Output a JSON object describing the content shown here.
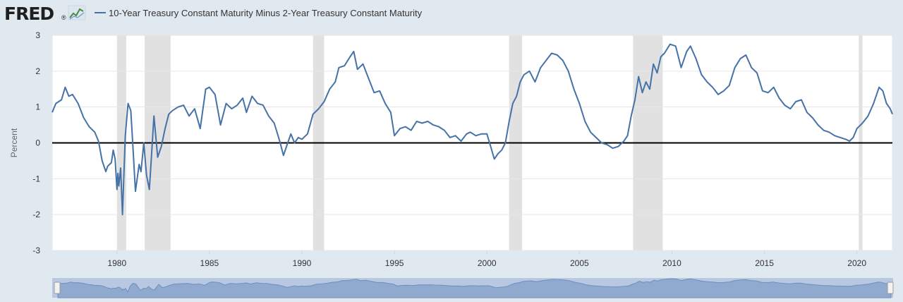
{
  "brand": {
    "logo_text": "FRED",
    "logo_registered": "®"
  },
  "legend": {
    "items": [
      {
        "label": "10-Year Treasury Constant Maturity Minus 2-Year Treasury Constant Maturity",
        "color": "#4572a7"
      }
    ]
  },
  "colors": {
    "background": "#e1e9f0",
    "plot_background": "#ffffff",
    "series_line": "#4572a7",
    "recession_band": "#e1e1e1",
    "zero_line": "#000000",
    "navigator_fill": "#8fa9cf",
    "navigator_track": "#b8c8e0"
  },
  "chart_data": {
    "type": "line",
    "title": "",
    "xlabel": "",
    "ylabel": "Percent",
    "xlim": [
      1976.5,
      2021.92
    ],
    "ylim": [
      -3,
      3
    ],
    "x_ticks": [
      1980,
      1985,
      1990,
      1995,
      2000,
      2005,
      2010,
      2015,
      2020
    ],
    "x_tick_labels": [
      "1980",
      "1985",
      "1990",
      "1995",
      "2000",
      "2005",
      "2010",
      "2015",
      "2020"
    ],
    "y_ticks": [
      -3,
      -2,
      -1,
      0,
      1,
      2,
      3
    ],
    "y_tick_labels": [
      "-3",
      "-2",
      "-1",
      "0",
      "1",
      "2",
      "3"
    ],
    "grid": true,
    "legend_position": "top-left",
    "reference_lines": [
      {
        "axis": "y",
        "value": 0
      }
    ],
    "recessions": [
      [
        1980.0,
        1980.5
      ],
      [
        1981.5,
        1982.9
      ],
      [
        1990.6,
        1991.2
      ],
      [
        2001.2,
        2001.9
      ],
      [
        2007.9,
        2009.5
      ],
      [
        2020.1,
        2020.3
      ]
    ],
    "series": [
      {
        "name": "10-Year Treasury Constant Maturity Minus 2-Year Treasury Constant Maturity",
        "x": [
          1976.5,
          1976.7,
          1977.0,
          1977.2,
          1977.4,
          1977.6,
          1977.9,
          1978.2,
          1978.5,
          1978.8,
          1979.0,
          1979.2,
          1979.4,
          1979.5,
          1979.7,
          1979.8,
          1979.9,
          1980.0,
          1980.05,
          1980.1,
          1980.2,
          1980.3,
          1980.45,
          1980.6,
          1980.75,
          1980.85,
          1981.0,
          1981.2,
          1981.3,
          1981.45,
          1981.6,
          1981.75,
          1981.85,
          1982.0,
          1982.2,
          1982.4,
          1982.6,
          1982.8,
          1983.0,
          1983.3,
          1983.6,
          1983.9,
          1984.2,
          1984.5,
          1984.8,
          1985.0,
          1985.3,
          1985.6,
          1985.9,
          1986.2,
          1986.5,
          1986.8,
          1987.0,
          1987.3,
          1987.6,
          1987.9,
          1988.2,
          1988.5,
          1988.8,
          1989.0,
          1989.2,
          1989.4,
          1989.6,
          1989.8,
          1990.0,
          1990.3,
          1990.6,
          1990.9,
          1991.2,
          1991.5,
          1991.8,
          1992.0,
          1992.3,
          1992.6,
          1992.8,
          1993.0,
          1993.3,
          1993.6,
          1993.9,
          1994.2,
          1994.5,
          1994.8,
          1995.0,
          1995.3,
          1995.6,
          1995.9,
          1996.2,
          1996.5,
          1996.8,
          1997.1,
          1997.4,
          1997.7,
          1998.0,
          1998.3,
          1998.6,
          1998.9,
          1999.1,
          1999.4,
          1999.7,
          2000.0,
          2000.2,
          2000.4,
          2000.6,
          2000.8,
          2001.0,
          2001.2,
          2001.4,
          2001.6,
          2001.8,
          2002.0,
          2002.3,
          2002.6,
          2002.9,
          2003.2,
          2003.5,
          2003.8,
          2004.1,
          2004.4,
          2004.7,
          2005.0,
          2005.3,
          2005.6,
          2005.9,
          2006.2,
          2006.5,
          2006.8,
          2007.1,
          2007.4,
          2007.6,
          2007.8,
          2008.0,
          2008.2,
          2008.4,
          2008.6,
          2008.8,
          2009.0,
          2009.2,
          2009.4,
          2009.6,
          2009.9,
          2010.2,
          2010.5,
          2010.8,
          2011.0,
          2011.3,
          2011.6,
          2011.9,
          2012.2,
          2012.5,
          2012.8,
          2013.1,
          2013.4,
          2013.7,
          2014.0,
          2014.3,
          2014.6,
          2014.9,
          2015.2,
          2015.5,
          2015.8,
          2016.1,
          2016.4,
          2016.7,
          2017.0,
          2017.3,
          2017.6,
          2017.9,
          2018.2,
          2018.5,
          2018.8,
          2019.1,
          2019.4,
          2019.6,
          2019.8,
          2020.0,
          2020.3,
          2020.6,
          2020.9,
          2021.2,
          2021.4,
          2021.6,
          2021.8,
          2021.92
        ],
        "values": [
          0.85,
          1.1,
          1.2,
          1.55,
          1.3,
          1.35,
          1.1,
          0.7,
          0.45,
          0.3,
          0.05,
          -0.5,
          -0.8,
          -0.65,
          -0.55,
          -0.2,
          -0.45,
          -1.3,
          -0.85,
          -1.2,
          -0.7,
          -2.0,
          0.2,
          1.1,
          0.9,
          0.0,
          -1.35,
          -0.6,
          -0.8,
          0.0,
          -0.9,
          -1.3,
          -0.5,
          0.75,
          -0.4,
          -0.1,
          0.4,
          0.8,
          0.9,
          1.0,
          1.05,
          0.75,
          0.95,
          0.4,
          1.5,
          1.55,
          1.35,
          0.5,
          1.1,
          0.95,
          1.05,
          1.25,
          0.85,
          1.3,
          1.1,
          1.05,
          0.75,
          0.55,
          0.05,
          -0.35,
          -0.05,
          0.25,
          0.0,
          0.15,
          0.1,
          0.25,
          0.8,
          0.95,
          1.15,
          1.5,
          1.7,
          2.1,
          2.15,
          2.4,
          2.55,
          2.05,
          2.2,
          1.8,
          1.4,
          1.45,
          1.1,
          0.85,
          0.2,
          0.4,
          0.45,
          0.35,
          0.6,
          0.55,
          0.6,
          0.5,
          0.45,
          0.35,
          0.15,
          0.2,
          0.05,
          0.25,
          0.3,
          0.2,
          0.25,
          0.25,
          -0.1,
          -0.45,
          -0.3,
          -0.2,
          0.0,
          0.6,
          1.1,
          1.3,
          1.7,
          1.9,
          2.0,
          1.7,
          2.1,
          2.3,
          2.5,
          2.45,
          2.3,
          2.0,
          1.5,
          1.1,
          0.6,
          0.3,
          0.15,
          0.0,
          -0.05,
          -0.15,
          -0.1,
          0.05,
          0.2,
          0.75,
          1.2,
          1.85,
          1.4,
          1.7,
          1.5,
          2.2,
          1.95,
          2.4,
          2.5,
          2.75,
          2.7,
          2.1,
          2.55,
          2.7,
          2.35,
          1.9,
          1.7,
          1.55,
          1.35,
          1.45,
          1.6,
          2.1,
          2.35,
          2.45,
          2.1,
          1.95,
          1.45,
          1.4,
          1.55,
          1.25,
          1.05,
          0.95,
          1.15,
          1.2,
          0.85,
          0.7,
          0.5,
          0.35,
          0.3,
          0.2,
          0.15,
          0.1,
          0.05,
          0.15,
          0.4,
          0.55,
          0.75,
          1.1,
          1.55,
          1.45,
          1.1,
          0.95,
          0.8
        ]
      }
    ]
  }
}
